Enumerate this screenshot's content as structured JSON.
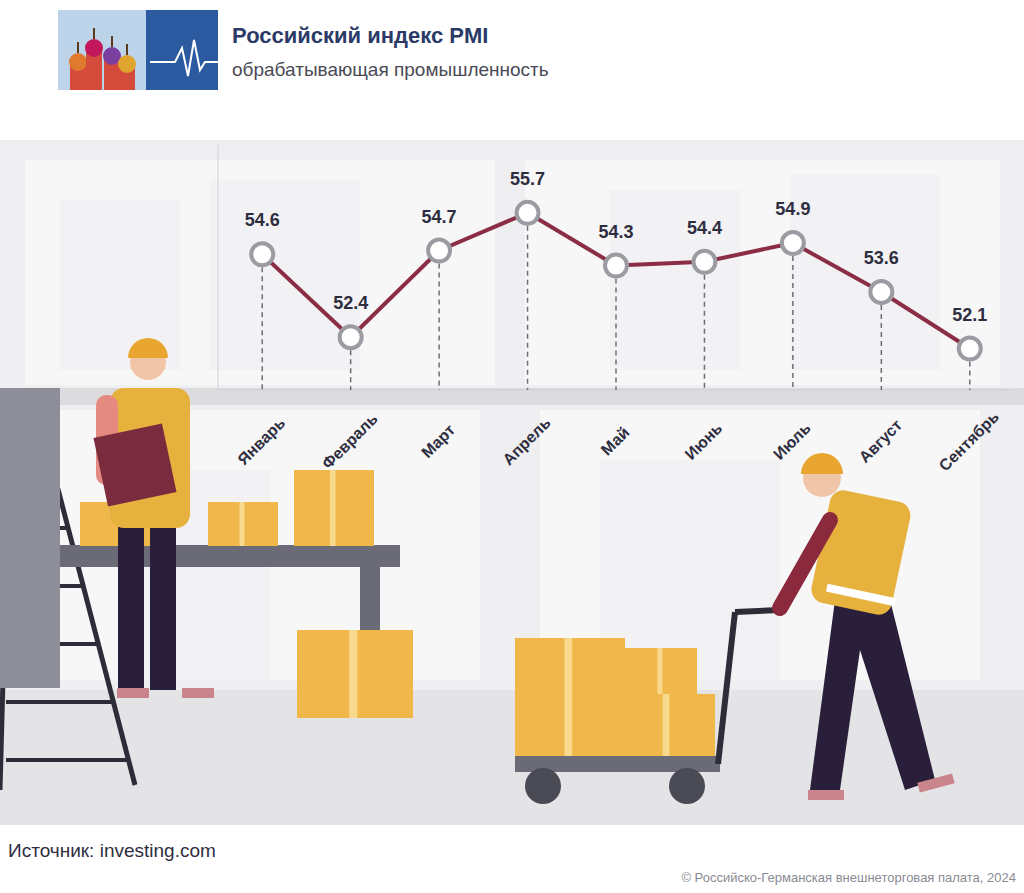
{
  "chart_data": {
    "type": "line",
    "title": "Российский индекс PMI",
    "subtitle": "обрабатывающая промышленность",
    "categories": [
      "Январь",
      "Февраль",
      "Март",
      "Апрель",
      "Май",
      "Июнь",
      "Июль",
      "Август",
      "Сентябрь"
    ],
    "values": [
      54.6,
      52.4,
      54.7,
      55.7,
      54.3,
      54.4,
      54.9,
      53.6,
      52.1
    ],
    "color": "#8b2e45",
    "marker": "circle",
    "ylim": [
      51,
      57.5
    ],
    "grid": false,
    "data_labels": true,
    "tick_labels": "x",
    "annotations": [
      "Источник: investing.com",
      "© Российско-Германская внешнеторговая палата, 2024"
    ]
  }
}
